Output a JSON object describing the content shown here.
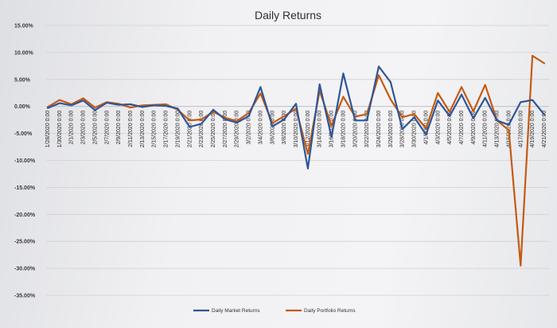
{
  "chart_data": {
    "type": "line",
    "title": "Daily Returns",
    "xlabel": "",
    "ylabel": "",
    "ylim": [
      -35,
      15
    ],
    "grid": true,
    "legend_position": "bottom",
    "y_ticks": [
      "15.00%",
      "10.00%",
      "5.00%",
      "0.00%",
      "-5.00%",
      "-10.00%",
      "-15.00%",
      "-20.00%",
      "-25.00%",
      "-30.00%",
      "-35.00%"
    ],
    "x": [
      "1/28/2020 0:00",
      "1/30/2020 0:00",
      "2/1/2020 0:00",
      "2/3/2020 0:00",
      "2/5/2020 0:00",
      "2/7/2020 0:00",
      "2/9/2020 0:00",
      "2/11/2020 0:00",
      "2/13/2020 0:00",
      "2/15/2020 0:00",
      "2/17/2020 0:00",
      "2/19/2020 0:00",
      "2/21/2020 0:00",
      "2/23/2020 0:00",
      "2/25/2020 0:00",
      "2/27/2020 0:00",
      "2/29/2020 0:00",
      "3/2/2020 0:00",
      "3/4/2020 0:00",
      "3/6/2020 0:00",
      "3/8/2020 0:00",
      "3/10/2020 0:00",
      "3/12/2020 0:00",
      "3/14/2020 0:00",
      "3/16/2020 0:00",
      "3/18/2020 0:00",
      "3/20/2020 0:00",
      "3/22/2020 0:00",
      "3/24/2020 0:00",
      "3/26/2020 0:00",
      "3/28/2020 0:00",
      "3/30/2020 0:00",
      "4/1/2020 0:00",
      "4/3/2020 0:00",
      "4/5/2020 0:00",
      "4/7/2020 0:00",
      "4/9/2020 0:00",
      "4/11/2020 0:00",
      "4/13/2020 0:00",
      "4/15/2020 0:00",
      "4/17/2020 0:00",
      "4/19/2020 0:00",
      "4/21/2020 0:00"
    ],
    "series": [
      {
        "name": "Daily Market Returns",
        "color": "#2f5597",
        "values": [
          -0.3,
          0.6,
          0.2,
          1.1,
          -0.7,
          0.7,
          0.3,
          0.4,
          -0.1,
          0.2,
          0.1,
          -0.4,
          -3.8,
          -3.2,
          -0.6,
          -2.4,
          -3.0,
          -1.8,
          3.6,
          -3.7,
          -2.4,
          0.5,
          -11.5,
          4.1,
          -5.7,
          6.1,
          -2.6,
          -2.6,
          7.4,
          4.5,
          -4.2,
          -2.0,
          -5.2,
          1.1,
          -1.8,
          2.2,
          -2.2,
          1.6,
          -2.6,
          -3.4,
          0.8,
          1.2,
          -1.5
        ]
      },
      {
        "name": "Daily Portfolio Returns",
        "color": "#c55a11",
        "values": [
          -0.1,
          1.2,
          0.4,
          1.5,
          -0.2,
          0.8,
          0.5,
          -0.2,
          0.2,
          0.3,
          0.4,
          -0.6,
          -2.6,
          -2.4,
          -1.0,
          -2.1,
          -2.7,
          -1.2,
          2.4,
          -3.1,
          -1.8,
          -0.4,
          -8.8,
          2.9,
          -3.6,
          1.8,
          -1.9,
          -1.4,
          5.8,
          1.3,
          -2.0,
          -1.4,
          -4.1,
          2.5,
          -1.0,
          3.6,
          -0.9,
          4.0,
          -2.6,
          -4.4,
          -29.5,
          9.4,
          8.0
        ]
      }
    ]
  }
}
